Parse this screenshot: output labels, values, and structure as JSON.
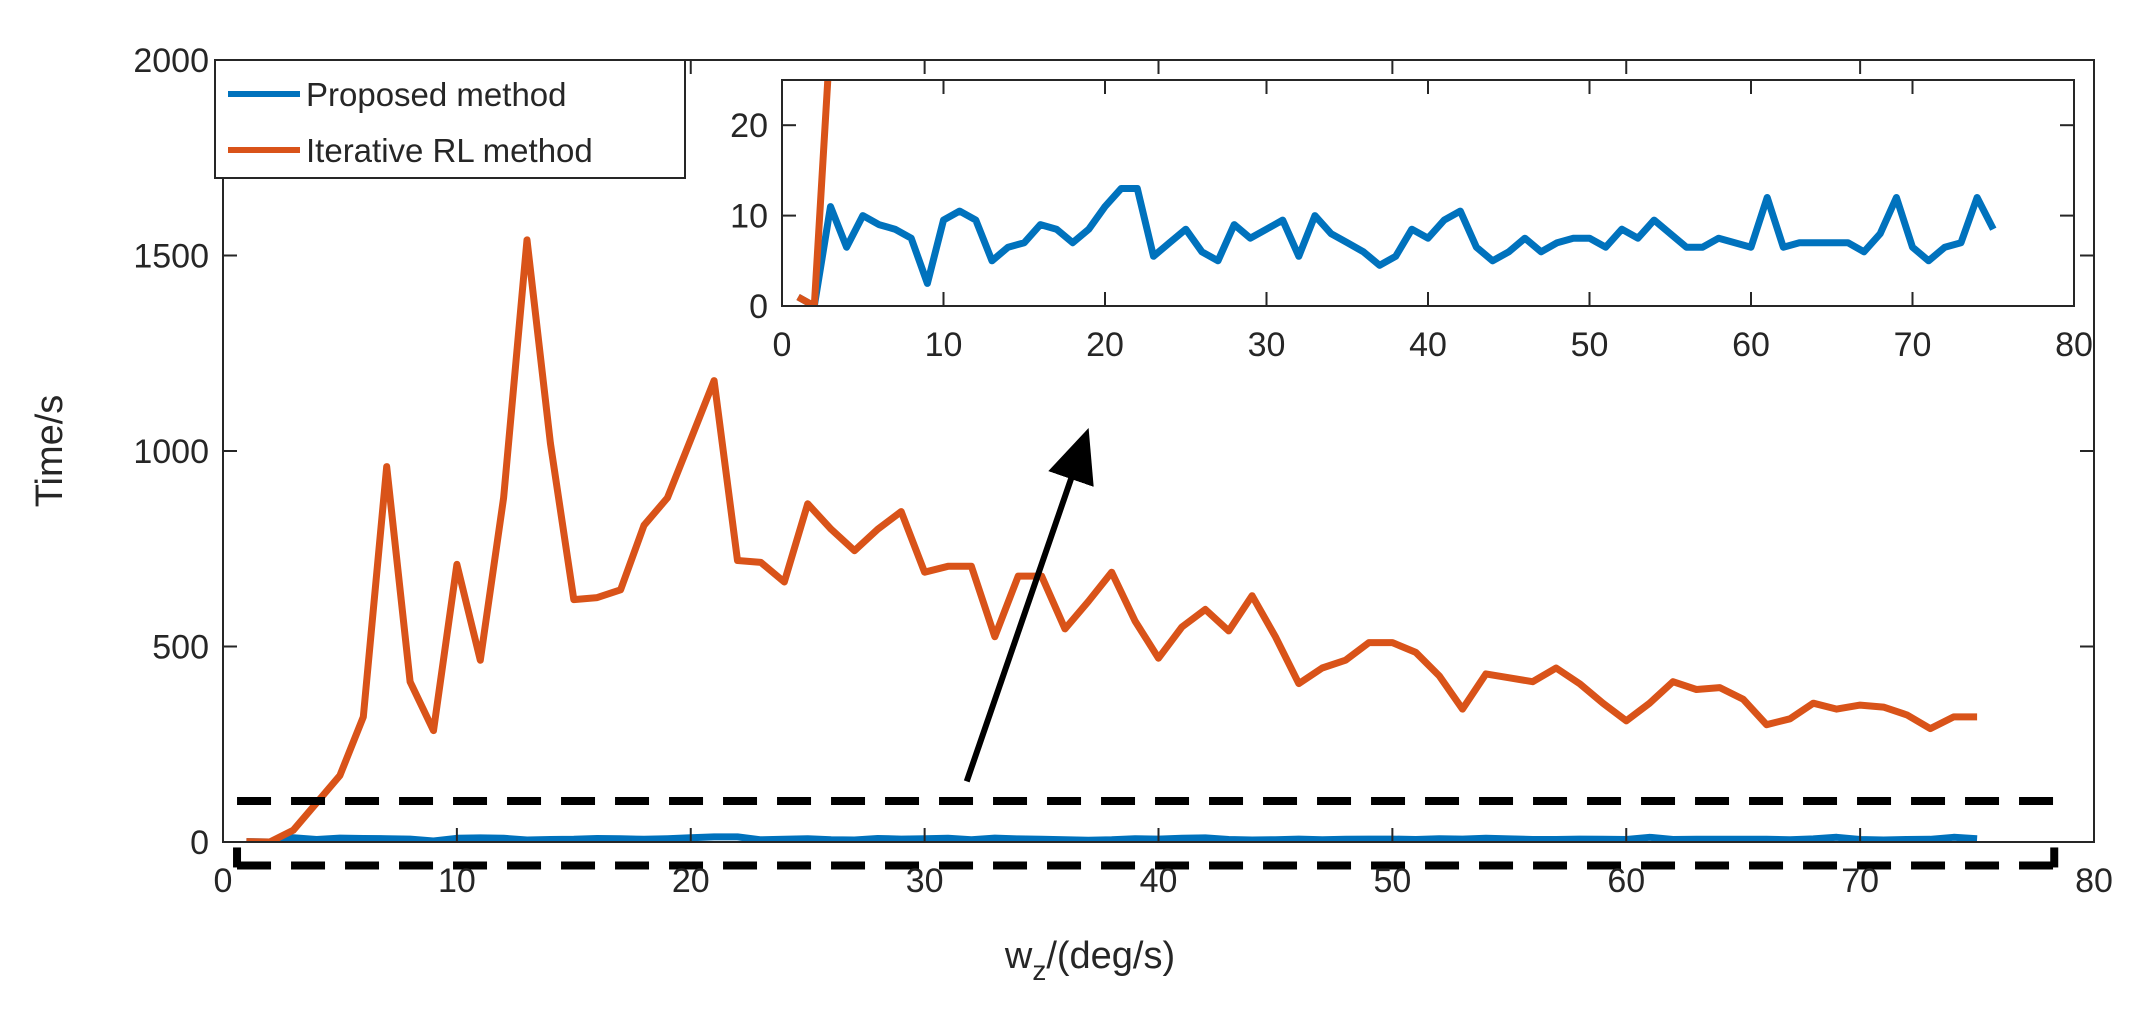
{
  "colors": {
    "proposed": "#0072BD",
    "iterative": "#D95319",
    "axis": "#262626",
    "annotation": "#000000"
  },
  "chart_data": [
    {
      "id": "main",
      "type": "line",
      "title": "",
      "xlabel_main": "w",
      "xlabel_sub": "z",
      "xlabel_rest": "/(deg/s)",
      "ylabel": "Time/s",
      "xlim": [
        0,
        80
      ],
      "ylim": [
        0,
        2000
      ],
      "xticks": [
        0,
        10,
        20,
        30,
        40,
        50,
        60,
        70,
        80
      ],
      "yticks": [
        0,
        500,
        1000,
        1500,
        2000
      ],
      "grid": false,
      "legend_position": "top-left",
      "series": [
        {
          "name": "Proposed method",
          "color_key": "proposed",
          "x": [
            1,
            2,
            3,
            4,
            5,
            6,
            7,
            8,
            9,
            10,
            11,
            12,
            13,
            14,
            15,
            16,
            17,
            18,
            19,
            20,
            21,
            22,
            23,
            24,
            25,
            26,
            27,
            28,
            29,
            30,
            31,
            32,
            33,
            34,
            35,
            36,
            37,
            38,
            39,
            40,
            41,
            42,
            43,
            44,
            45,
            46,
            47,
            48,
            49,
            50,
            51,
            52,
            53,
            54,
            55,
            56,
            57,
            58,
            59,
            60,
            61,
            62,
            63,
            64,
            65,
            66,
            67,
            68,
            69,
            70,
            71,
            72,
            73,
            74,
            75
          ],
          "values": [
            1,
            0,
            11,
            6.5,
            10,
            9,
            8.5,
            7.5,
            2.5,
            9.5,
            10.5,
            9.5,
            5,
            6.5,
            7,
            9,
            8.5,
            7,
            8.5,
            11,
            13,
            13,
            5.5,
            7,
            8.5,
            6,
            5,
            9,
            7.5,
            8.5,
            9.5,
            5.5,
            10,
            8,
            7,
            6,
            4.5,
            5.5,
            8.5,
            7.5,
            9.5,
            10.5,
            6.5,
            5,
            6,
            7.5,
            6,
            7,
            7.5,
            7.5,
            6.5,
            8.5,
            7.5,
            9.5,
            8,
            6.5,
            6.5,
            7.5,
            7,
            6.5,
            12,
            6.5,
            7,
            7,
            7,
            7,
            6,
            8,
            12,
            6.5,
            5,
            6.5,
            7,
            12,
            8.5
          ]
        },
        {
          "name": "Iterative RL method",
          "color_key": "iterative",
          "x": [
            1,
            2,
            3,
            4,
            5,
            6,
            7,
            8,
            9,
            10,
            11,
            12,
            13,
            14,
            15,
            16,
            17,
            18,
            19,
            20,
            21,
            22,
            23,
            24,
            25,
            26,
            27,
            28,
            29,
            30,
            31,
            32,
            33,
            34,
            35,
            36,
            37,
            38,
            39,
            40,
            41,
            42,
            43,
            44,
            45,
            46,
            47,
            48,
            49,
            50,
            51,
            52,
            53,
            54,
            55,
            56,
            57,
            58,
            59,
            60,
            61,
            62,
            63,
            64,
            65,
            66,
            67,
            68,
            69,
            70,
            71,
            72,
            73,
            74,
            75
          ],
          "values": [
            1,
            0,
            30,
            100,
            170,
            320,
            960,
            410,
            285,
            710,
            465,
            880,
            1540,
            1020,
            620,
            625,
            645,
            810,
            880,
            1030,
            1180,
            720,
            715,
            665,
            865,
            800,
            745,
            800,
            845,
            690,
            705,
            705,
            525,
            680,
            680,
            545,
            615,
            690,
            565,
            470,
            550,
            595,
            540,
            630,
            525,
            405,
            445,
            465,
            510,
            510,
            485,
            425,
            340,
            430,
            420,
            410,
            445,
            405,
            355,
            310,
            355,
            410,
            390,
            395,
            365,
            300,
            315,
            355,
            340,
            350,
            345,
            325,
            290,
            320,
            320
          ]
        }
      ],
      "annotations": {
        "dashed_box_x": [
          0.6,
          78.3
        ],
        "dashed_box_y": [
          -60,
          105
        ],
        "arrow_from": [
          31.8,
          155
        ],
        "arrow_to_inset_data": [
          18.5,
          -16
        ]
      }
    },
    {
      "id": "inset",
      "type": "line",
      "title": "",
      "xlim": [
        0,
        80
      ],
      "ylim": [
        0,
        25
      ],
      "xticks": [
        0,
        10,
        20,
        30,
        40,
        50,
        60,
        70,
        80
      ],
      "yticks": [
        0,
        10,
        20
      ],
      "grid": false,
      "series_refs": [
        "Proposed method",
        "Iterative RL method"
      ]
    }
  ]
}
